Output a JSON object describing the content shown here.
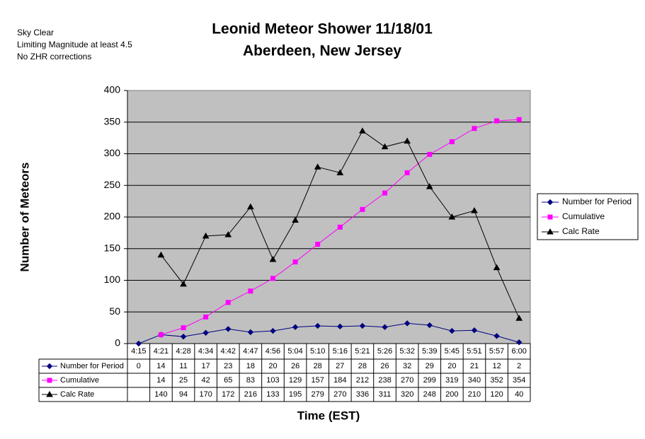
{
  "chart_data": {
    "type": "line",
    "title": "Leonid Meteor Shower 11/18/01",
    "subtitle": "Aberdeen, New Jersey",
    "notes": [
      "Sky Clear",
      "Limiting Magnitude at least 4.5",
      "No ZHR corrections"
    ],
    "y_label": "Number of Meteors",
    "x_label": "Time (EST)",
    "categories": [
      "4:15",
      "4:21",
      "4:28",
      "4:34",
      "4:42",
      "4:47",
      "4:56",
      "5:04",
      "5:10",
      "5:16",
      "5:21",
      "5:26",
      "5:32",
      "5:39",
      "5:45",
      "5:51",
      "5:57",
      "6:00"
    ],
    "series": [
      {
        "name": "Number for Period",
        "color": "#000080",
        "marker": "diamond",
        "values": [
          0,
          14,
          11,
          17,
          23,
          18,
          20,
          26,
          28,
          27,
          28,
          26,
          32,
          29,
          20,
          21,
          12,
          2
        ]
      },
      {
        "name": "Cumulative",
        "color": "#ff00ff",
        "marker": "square",
        "values": [
          null,
          14,
          25,
          42,
          65,
          83,
          103,
          129,
          157,
          184,
          212,
          238,
          270,
          299,
          319,
          340,
          352,
          354
        ]
      },
      {
        "name": "Calc Rate",
        "color": "#000000",
        "marker": "triangle",
        "values": [
          null,
          140,
          94,
          170,
          172,
          216,
          133,
          195,
          279,
          270,
          336,
          311,
          320,
          248,
          200,
          210,
          120,
          40
        ]
      }
    ],
    "ylim": [
      0,
      400
    ],
    "yticks": [
      0,
      50,
      100,
      150,
      200,
      250,
      300,
      350,
      400
    ],
    "grid": true,
    "legend": "right"
  }
}
